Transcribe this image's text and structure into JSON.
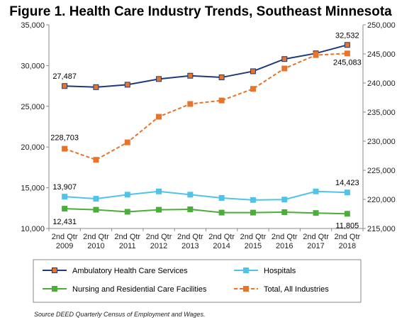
{
  "chart_data": {
    "type": "line",
    "title": "Figure 1. Health Care Industry Trends, Southeast Minnesota",
    "source": "Source DEED Quarterly Census of Employment and Wages.",
    "categories": [
      [
        "2nd Qtr",
        "2009"
      ],
      [
        "2nd Qtr",
        "2010"
      ],
      [
        "2nd Qtr",
        "2011"
      ],
      [
        "2nd Qtr",
        "2012"
      ],
      [
        "2nd Qtr",
        "2013"
      ],
      [
        "2nd Qtr",
        "2014"
      ],
      [
        "2nd Qtr",
        "2015"
      ],
      [
        "2nd Qtr",
        "2016"
      ],
      [
        "2nd Qtr",
        "2017"
      ],
      [
        "2nd Qtr",
        "2018"
      ]
    ],
    "y_left": {
      "ylim": [
        10000,
        35000
      ],
      "ticks": [
        10000,
        15000,
        20000,
        25000,
        30000,
        35000
      ],
      "tick_labels": [
        "10,000",
        "15,000",
        "20,000",
        "25,000",
        "30,000",
        "35,000"
      ]
    },
    "y_right": {
      "ylim": [
        215000,
        250000
      ],
      "ticks": [
        215000,
        220000,
        225000,
        230000,
        235000,
        240000,
        245000,
        250000
      ],
      "tick_labels": [
        "215,000",
        "220,000",
        "225,000",
        "230,000",
        "235,000",
        "240,000",
        "245,000",
        "250,000"
      ]
    },
    "grid": false,
    "legend_position": "bottom",
    "series": [
      {
        "name": "Ambulatory Health Care Services",
        "axis": "left",
        "color": "#1f3a7a",
        "marker_color": "#e8742a",
        "dashed": false,
        "values": [
          27487,
          27350,
          27650,
          28350,
          28750,
          28550,
          29300,
          30800,
          31500,
          32532
        ]
      },
      {
        "name": "Hospitals",
        "axis": "left",
        "color": "#4fc3e8",
        "marker_color": "#4fc3e8",
        "dashed": false,
        "values": [
          13907,
          13650,
          14150,
          14550,
          14150,
          13750,
          13500,
          13550,
          14550,
          14423
        ]
      },
      {
        "name": "Nursing and Residential Care Facilities",
        "axis": "left",
        "color": "#4cae3a",
        "marker_color": "#4cae3a",
        "dashed": false,
        "values": [
          12431,
          12300,
          12050,
          12300,
          12350,
          11950,
          11950,
          12000,
          11900,
          11805
        ]
      },
      {
        "name": "Total, All Industries",
        "axis": "right",
        "color": "#e8742a",
        "marker_color": "#e8742a",
        "dashed": true,
        "values": [
          228703,
          226800,
          229800,
          234200,
          236400,
          237000,
          239000,
          242500,
          244800,
          245083
        ]
      }
    ],
    "annotations": [
      {
        "series": 0,
        "index": 0,
        "text": "27,487"
      },
      {
        "series": 0,
        "index": 9,
        "text": "32,532"
      },
      {
        "series": 3,
        "index": 0,
        "text": "228,703"
      },
      {
        "series": 3,
        "index": 9,
        "text": "245,083"
      },
      {
        "series": 1,
        "index": 0,
        "text": "13,907"
      },
      {
        "series": 1,
        "index": 9,
        "text": "14,423"
      },
      {
        "series": 2,
        "index": 0,
        "text": "12,431"
      },
      {
        "series": 2,
        "index": 9,
        "text": "11,805"
      }
    ],
    "legend_order": [
      0,
      1,
      2,
      3
    ]
  }
}
